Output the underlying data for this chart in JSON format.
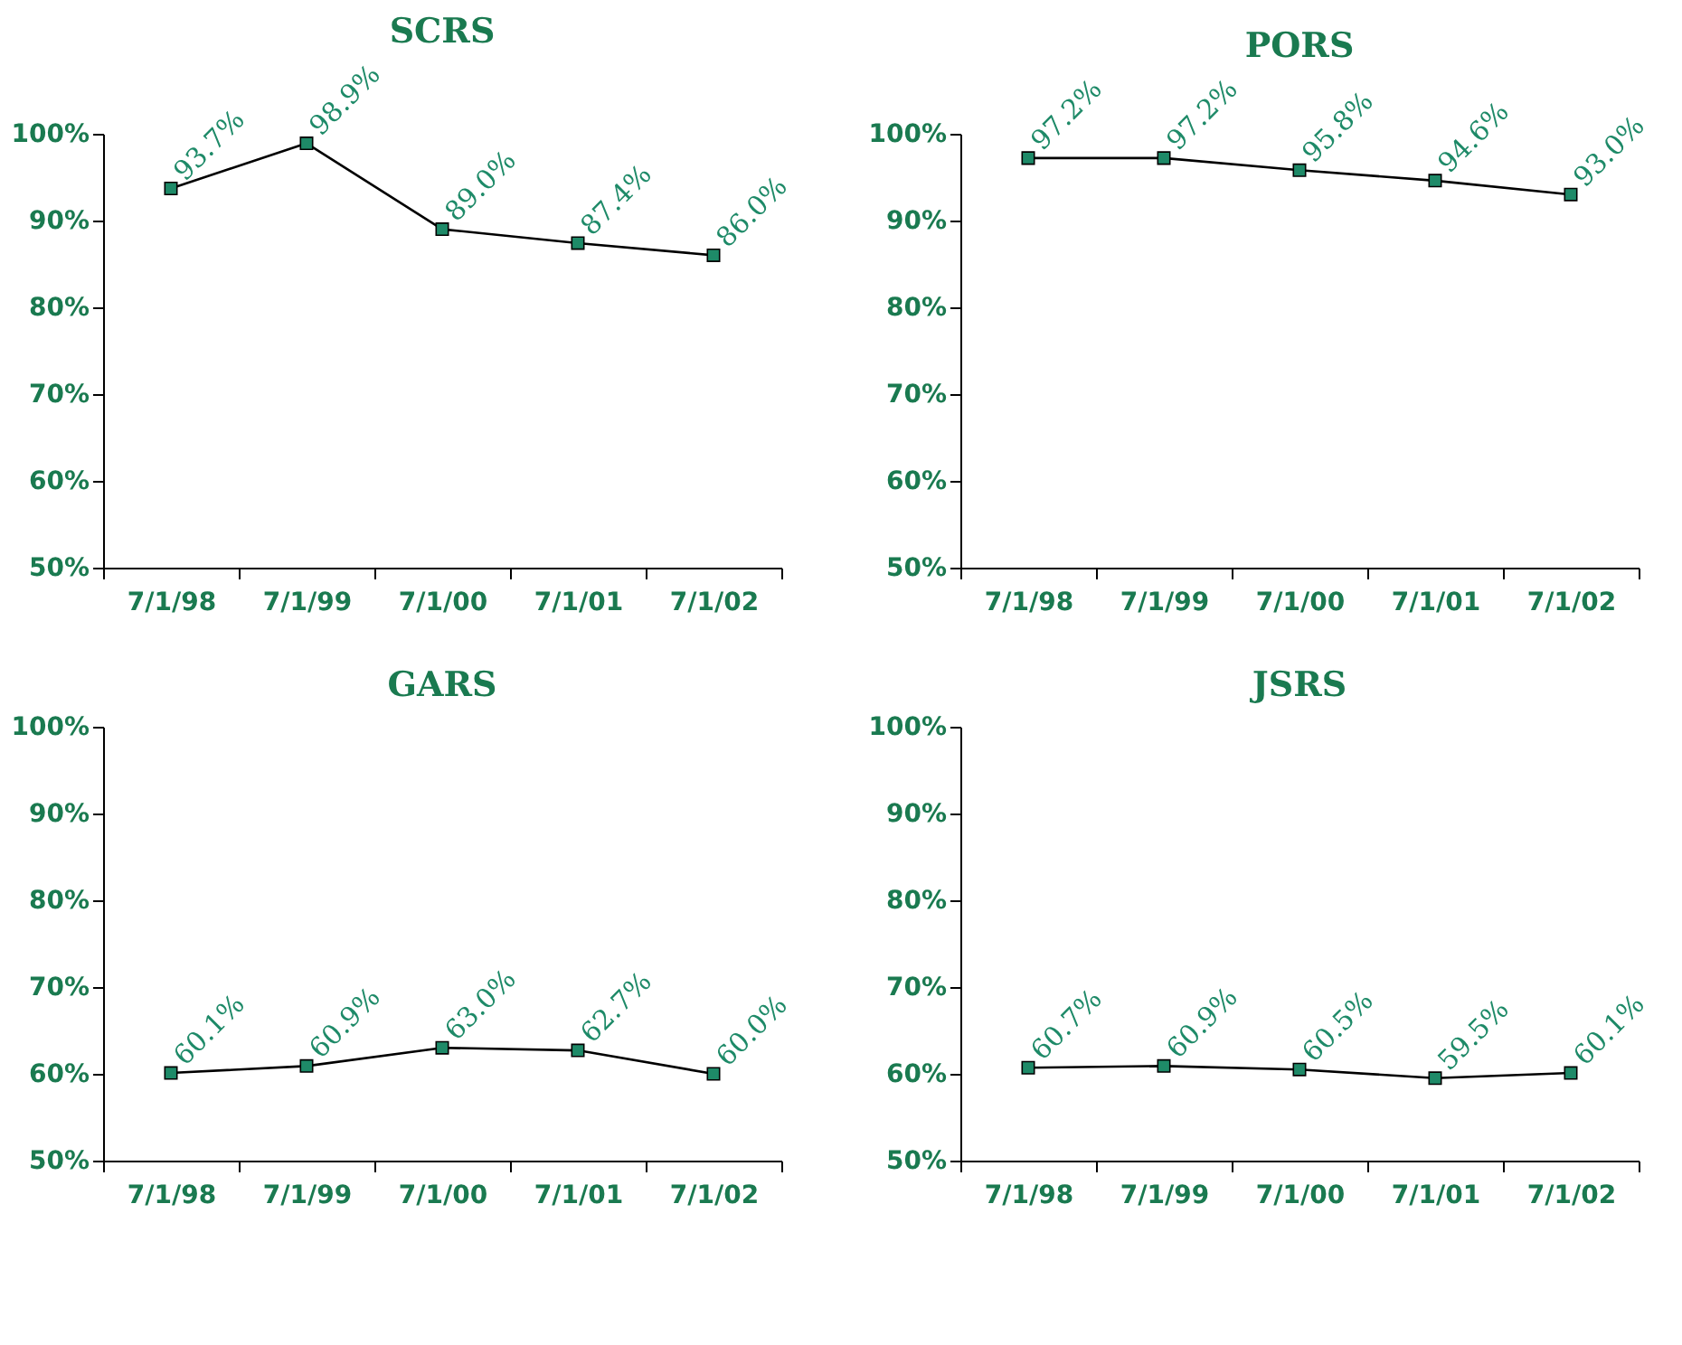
{
  "chart_data": [
    {
      "type": "line",
      "title": "SCRS",
      "categories": [
        "7/1/98",
        "7/1/99",
        "7/1/00",
        "7/1/01",
        "7/1/02"
      ],
      "marker": "square",
      "line_style": "solid",
      "grid": false,
      "ylim": [
        50,
        100
      ],
      "yticks": [
        {
          "value": 50,
          "label": "50%"
        },
        {
          "value": 60,
          "label": "60%"
        },
        {
          "value": 70,
          "label": "70%"
        },
        {
          "value": 80,
          "label": "80%"
        },
        {
          "value": 90,
          "label": "90%"
        },
        {
          "value": 100,
          "label": "100%"
        }
      ],
      "series": [
        {
          "color": "#1e8a68",
          "values": [
            93.7,
            98.9,
            89.0,
            87.4,
            86.0
          ],
          "value_labels": [
            "93.7%",
            "98.9%",
            "89.0%",
            "87.4%",
            "86.0%"
          ]
        }
      ]
    },
    {
      "type": "line",
      "title": "PORS",
      "categories": [
        "7/1/98",
        "7/1/99",
        "7/1/00",
        "7/1/01",
        "7/1/02"
      ],
      "marker": "square",
      "line_style": "solid",
      "grid": false,
      "ylim": [
        50,
        100
      ],
      "yticks": [
        {
          "value": 50,
          "label": "50%"
        },
        {
          "value": 60,
          "label": "60%"
        },
        {
          "value": 70,
          "label": "70%"
        },
        {
          "value": 80,
          "label": "80%"
        },
        {
          "value": 90,
          "label": "90%"
        },
        {
          "value": 100,
          "label": "100%"
        }
      ],
      "series": [
        {
          "color": "#1e8a68",
          "values": [
            97.2,
            97.2,
            95.8,
            94.6,
            93.0
          ],
          "value_labels": [
            "97.2%",
            "97.2%",
            "95.8%",
            "94.6%",
            "93.0%"
          ]
        }
      ]
    },
    {
      "type": "line",
      "title": "GARS",
      "categories": [
        "7/1/98",
        "7/1/99",
        "7/1/00",
        "7/1/01",
        "7/1/02"
      ],
      "marker": "square",
      "line_style": "solid",
      "grid": false,
      "ylim": [
        50,
        100
      ],
      "yticks": [
        {
          "value": 50,
          "label": "50%"
        },
        {
          "value": 60,
          "label": "60%"
        },
        {
          "value": 70,
          "label": "70%"
        },
        {
          "value": 80,
          "label": "80%"
        },
        {
          "value": 90,
          "label": "90%"
        },
        {
          "value": 100,
          "label": "100%"
        }
      ],
      "series": [
        {
          "color": "#1e8a68",
          "values": [
            60.1,
            60.9,
            63.0,
            62.7,
            60.0
          ],
          "value_labels": [
            "60.1%",
            "60.9%",
            "63.0%",
            "62.7%",
            "60.0%"
          ]
        }
      ]
    },
    {
      "type": "line",
      "title": "JSRS",
      "categories": [
        "7/1/98",
        "7/1/99",
        "7/1/00",
        "7/1/01",
        "7/1/02"
      ],
      "marker": "square",
      "line_style": "solid",
      "grid": false,
      "ylim": [
        50,
        100
      ],
      "yticks": [
        {
          "value": 50,
          "label": "50%"
        },
        {
          "value": 60,
          "label": "60%"
        },
        {
          "value": 70,
          "label": "70%"
        },
        {
          "value": 80,
          "label": "80%"
        },
        {
          "value": 90,
          "label": "90%"
        },
        {
          "value": 100,
          "label": "100%"
        }
      ],
      "series": [
        {
          "color": "#1e8a68",
          "values": [
            60.7,
            60.9,
            60.5,
            59.5,
            60.1
          ],
          "value_labels": [
            "60.7%",
            "60.9%",
            "60.5%",
            "59.5%",
            "60.1%"
          ]
        }
      ]
    }
  ]
}
